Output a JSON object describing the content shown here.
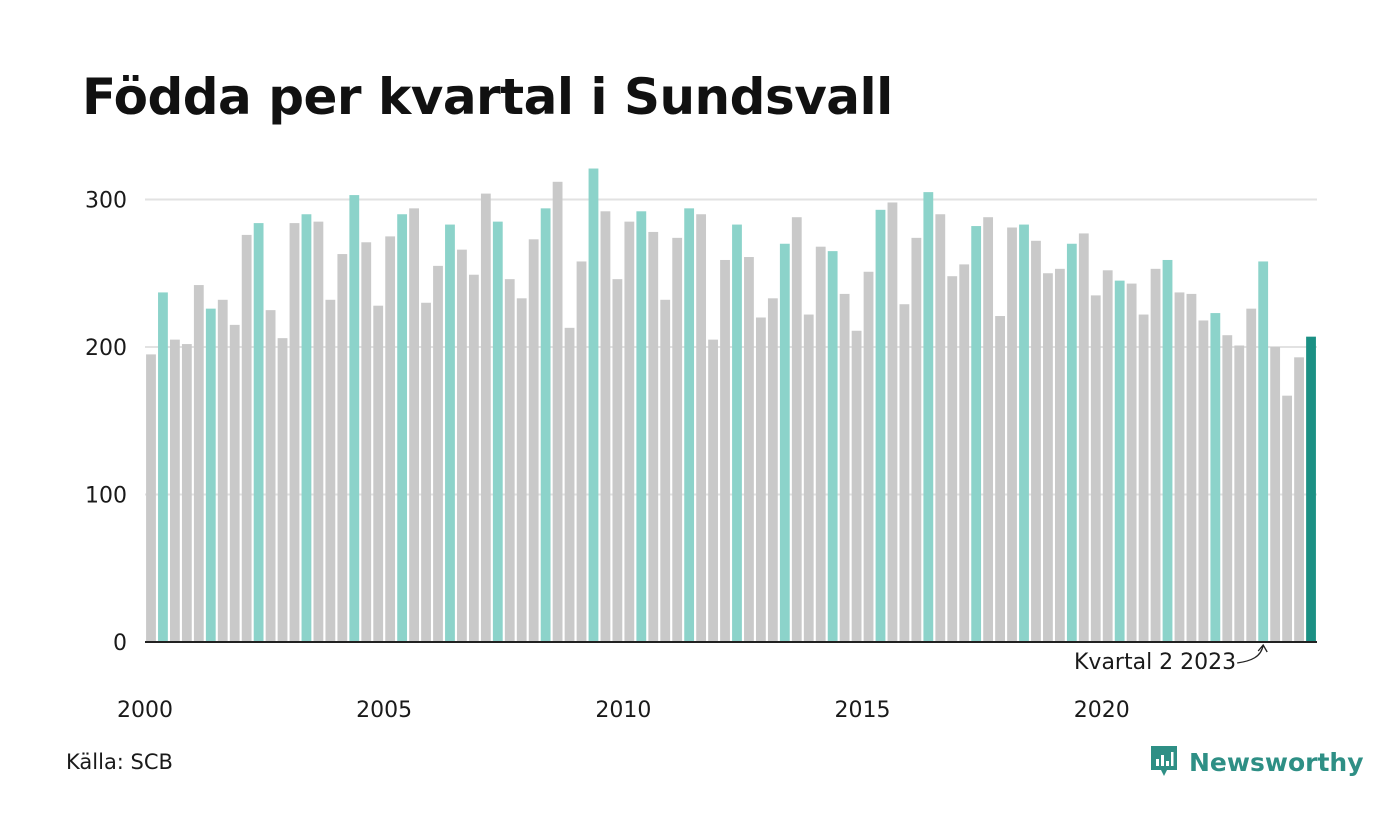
{
  "title": "Födda per kvartal i Sundsvall",
  "source": "Källa: SCB",
  "logo": {
    "text": "Newsworthy",
    "icon": "newsworthy-bar-chart-icon"
  },
  "colors": {
    "bar_default": "#c9c9c9",
    "bar_highlight_quarter": "#8cd3ca",
    "bar_latest": "#1b9084",
    "gridline": "#e2e2e2",
    "baseline": "#222222",
    "brand": "#2e8f85"
  },
  "chart_data": {
    "type": "bar",
    "title": "Födda per kvartal i Sundsvall",
    "xlabel": "",
    "ylabel": "",
    "ylim": [
      0,
      330
    ],
    "yticks": [
      0,
      100,
      200,
      300
    ],
    "xtick_labels": [
      "2000",
      "2005",
      "2010",
      "2015",
      "2020"
    ],
    "grid": true,
    "highlighted_quarter": 2,
    "annotation": {
      "text": "Kvartal 2 2023",
      "target": "2023 Q2"
    },
    "categories": [
      "2000 Q1",
      "2000 Q2",
      "2000 Q3",
      "2000 Q4",
      "2001 Q1",
      "2001 Q2",
      "2001 Q3",
      "2001 Q4",
      "2002 Q1",
      "2002 Q2",
      "2002 Q3",
      "2002 Q4",
      "2003 Q1",
      "2003 Q2",
      "2003 Q3",
      "2003 Q4",
      "2004 Q1",
      "2004 Q2",
      "2004 Q3",
      "2004 Q4",
      "2005 Q1",
      "2005 Q2",
      "2005 Q3",
      "2005 Q4",
      "2006 Q1",
      "2006 Q2",
      "2006 Q3",
      "2006 Q4",
      "2007 Q1",
      "2007 Q2",
      "2007 Q3",
      "2007 Q4",
      "2008 Q1",
      "2008 Q2",
      "2008 Q3",
      "2008 Q4",
      "2009 Q1",
      "2009 Q2",
      "2009 Q3",
      "2009 Q4",
      "2010 Q1",
      "2010 Q2",
      "2010 Q3",
      "2010 Q4",
      "2011 Q1",
      "2011 Q2",
      "2011 Q3",
      "2011 Q4",
      "2012 Q1",
      "2012 Q2",
      "2012 Q3",
      "2012 Q4",
      "2013 Q1",
      "2013 Q2",
      "2013 Q3",
      "2013 Q4",
      "2014 Q1",
      "2014 Q2",
      "2014 Q3",
      "2014 Q4",
      "2015 Q1",
      "2015 Q2",
      "2015 Q3",
      "2015 Q4",
      "2016 Q1",
      "2016 Q2",
      "2016 Q3",
      "2016 Q4",
      "2017 Q1",
      "2017 Q2",
      "2017 Q3",
      "2017 Q4",
      "2018 Q1",
      "2018 Q2",
      "2018 Q3",
      "2018 Q4",
      "2019 Q1",
      "2019 Q2",
      "2019 Q3",
      "2019 Q4",
      "2020 Q1",
      "2020 Q2",
      "2020 Q3",
      "2020 Q4",
      "2021 Q1",
      "2021 Q2",
      "2021 Q3",
      "2021 Q4",
      "2022 Q1",
      "2022 Q2",
      "2022 Q3",
      "2022 Q4",
      "2023 Q1",
      "2023 Q2",
      "2023 Q3",
      "2023 Q4",
      "2024 Q1",
      "2024 Q2"
    ],
    "values": [
      195,
      237,
      205,
      202,
      242,
      226,
      232,
      215,
      276,
      284,
      225,
      206,
      284,
      290,
      285,
      232,
      263,
      303,
      271,
      228,
      275,
      290,
      294,
      230,
      255,
      283,
      266,
      249,
      304,
      285,
      246,
      233,
      273,
      294,
      312,
      213,
      258,
      321,
      292,
      246,
      285,
      292,
      278,
      232,
      274,
      294,
      290,
      205,
      259,
      283,
      261,
      220,
      233,
      270,
      288,
      222,
      268,
      265,
      236,
      211,
      251,
      293,
      298,
      229,
      274,
      305,
      290,
      248,
      256,
      282,
      288,
      221,
      281,
      283,
      272,
      250,
      253,
      270,
      277,
      235,
      252,
      245,
      243,
      222,
      253,
      259,
      237,
      236,
      218,
      223,
      208,
      201,
      226,
      258,
      200,
      167,
      193,
      207
    ]
  }
}
